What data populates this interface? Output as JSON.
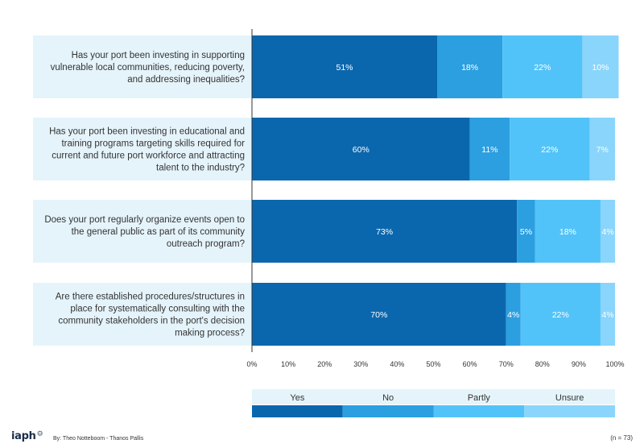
{
  "chart_data": {
    "type": "bar",
    "orientation": "horizontal",
    "stacked": true,
    "categories": [
      "Has your port been investing in supporting vulnerable local communities, reducing poverty, and addressing inequalities?",
      "Has your port been investing in educational and training programs targeting skills required for current and future port workforce and attracting talent to the industry?",
      "Does your port regularly organize events open to the general public as part of its community outreach program?",
      "Are there established procedures/structures in place for systematically consulting with the community stakeholders in the port's decision making process?"
    ],
    "category_lines": [
      [
        "Has your port been investing in supporting",
        "vulnerable local communities, reducing poverty,",
        "and addressing inequalities?"
      ],
      [
        "Has your port been investing in educational and",
        "training programs targeting skills required for",
        "current and future port workforce and attracting",
        "talent to the industry?"
      ],
      [
        "Does your port regularly organize events open to",
        "the general public as part of its community",
        "outreach program?"
      ],
      [
        "Are there established procedures/structures in",
        "place for systematically consulting with the",
        "community stakeholders in the port's decision",
        "making process?"
      ]
    ],
    "series": [
      {
        "name": "Yes",
        "values": [
          51,
          60,
          73,
          70
        ],
        "labels": [
          "51%",
          "60%",
          "73%",
          "70%"
        ],
        "color": "#0b67ad"
      },
      {
        "name": "No",
        "values": [
          18,
          11,
          5,
          4
        ],
        "labels": [
          "18%",
          "11%",
          "5%",
          "4%"
        ],
        "color": "#2b9fe0"
      },
      {
        "name": "Partly",
        "values": [
          22,
          22,
          18,
          22
        ],
        "labels": [
          "22%",
          "22%",
          "18%",
          "22%"
        ],
        "color": "#52c3f8"
      },
      {
        "name": "Unsure",
        "values": [
          10,
          7,
          4,
          4
        ],
        "labels": [
          "10%",
          "7%",
          "4%",
          "4%"
        ],
        "color": "#8ad5fb"
      }
    ],
    "xlim": [
      0,
      100
    ],
    "x_ticks": [
      "0%",
      "10%",
      "20%",
      "30%",
      "40%",
      "50%",
      "60%",
      "70%",
      "80%",
      "90%",
      "100%"
    ],
    "grid": false,
    "legend_position": "bottom",
    "label_bg_color": "#e5f4fb"
  },
  "footer": {
    "brand": "iaph",
    "brand_mark": "⚙",
    "credit": "By: Theo Notteboom - Thanos Pallis",
    "sample": "(n = 73)"
  }
}
